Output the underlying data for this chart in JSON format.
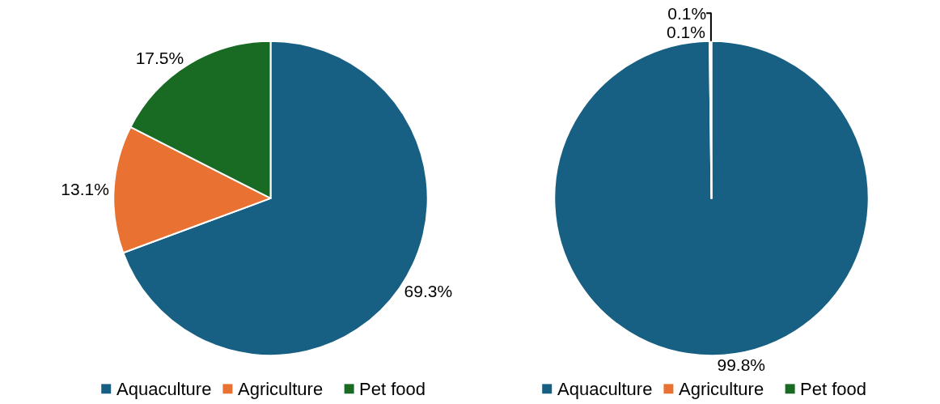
{
  "chart_data": [
    {
      "type": "pie",
      "categories": [
        "Aquaculture",
        "Agriculture",
        "Pet food"
      ],
      "values": [
        69.3,
        13.1,
        17.5
      ],
      "colors": [
        "#186083",
        "#e97132",
        "#196b24"
      ],
      "value_labels": [
        "69.3%",
        "13.1%",
        "17.5%"
      ],
      "legend": "bottom"
    },
    {
      "type": "pie",
      "categories": [
        "Aquaculture",
        "Agriculture",
        "Pet food"
      ],
      "values": [
        99.8,
        0.1,
        0.1
      ],
      "colors": [
        "#186083",
        "#e97132",
        "#196b24"
      ],
      "value_labels": [
        "99.8%",
        "0.1%",
        "0.1%"
      ],
      "legend": "bottom"
    }
  ]
}
